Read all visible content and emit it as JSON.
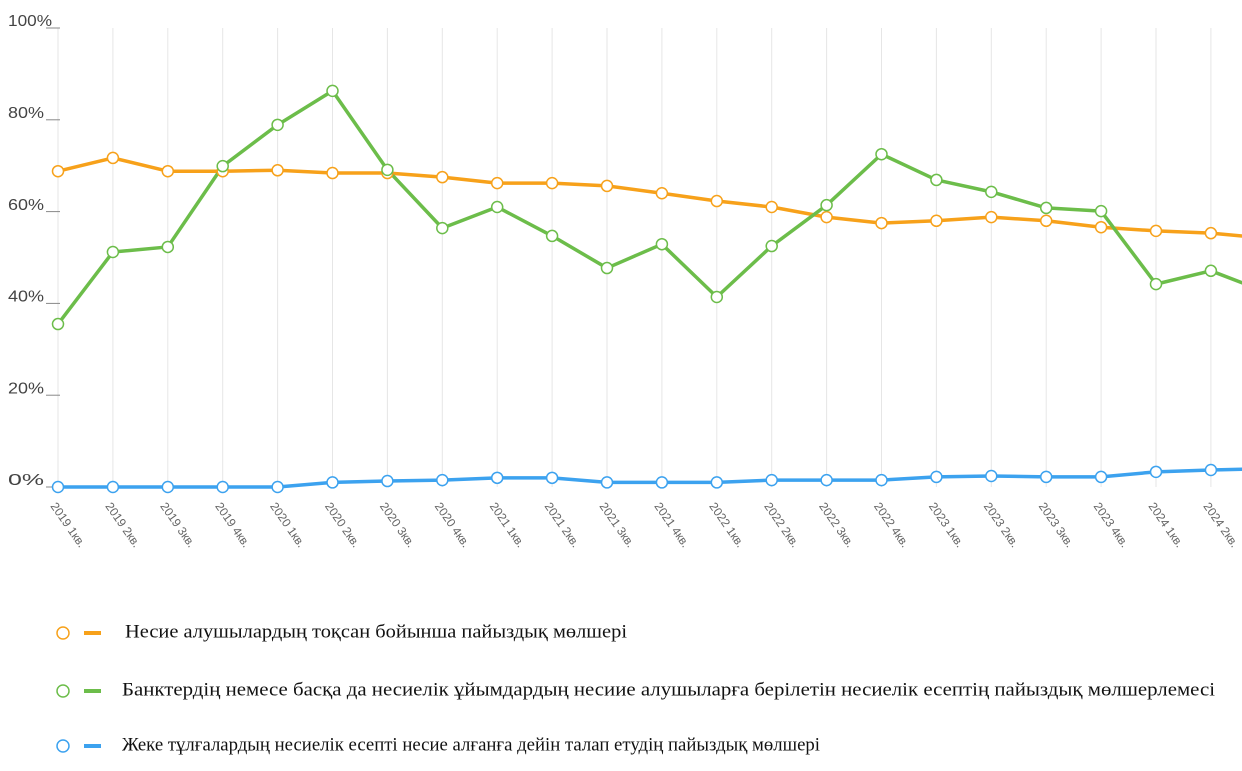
{
  "chart_data": {
    "type": "line",
    "categories": [
      "2019 1кв.",
      "2019 2кв.",
      "2019 3кв.",
      "2019 4кв.",
      "2020 1кв.",
      "2020 2кв.",
      "2020 3кв.",
      "2020 4кв.",
      "2021 1кв.",
      "2021 2кв.",
      "2021 3кв.",
      "2021 4кв.",
      "2022 1кв.",
      "2022 2кв.",
      "2022 3кв.",
      "2022 4кв.",
      "2023 1кв.",
      "2023 2кв.",
      "2023 3кв.",
      "2023 4кв.",
      "2024 1кв.",
      "2024 2кв.",
      null
    ],
    "series": [
      {
        "name": "Несие алушылардың тоқсан бойынша пайыздық мөлшері",
        "color": "#f7a11a",
        "values": [
          68.8,
          71.7,
          68.8,
          68.8,
          69.0,
          68.4,
          68.4,
          67.5,
          66.2,
          66.2,
          65.6,
          64.0,
          62.3,
          61.0,
          58.8,
          57.5,
          58.0,
          58.8,
          58.0,
          56.6,
          55.8,
          55.3,
          54.2
        ]
      },
      {
        "name": "Банктердің немесе басқа да несиелік ұйымдардың несиие алушыларға берілетін несиелік есептің пайыздық мөлшерлемесі",
        "color": "#6cbd4a",
        "values": [
          35.5,
          51.2,
          52.3,
          69.9,
          78.9,
          86.3,
          69.1,
          56.4,
          61.0,
          54.7,
          47.7,
          52.9,
          41.4,
          52.5,
          61.4,
          72.5,
          66.9,
          64.3,
          60.8,
          60.1,
          44.2,
          47.1,
          42.5
        ]
      },
      {
        "name": "Жеке тұлғалардың несиелік есепті несие алғанға дейін талап етудің пайыздық мөлшері",
        "color": "#3ca2ef",
        "values": [
          0,
          0,
          0,
          0,
          0,
          1.0,
          1.3,
          1.5,
          2.0,
          2.0,
          1.0,
          1.0,
          1.0,
          1.5,
          1.5,
          1.5,
          2.2,
          2.4,
          2.2,
          2.2,
          3.3,
          3.7,
          4.0
        ]
      }
    ],
    "ylim": [
      0,
      100
    ],
    "yticks": [
      {
        "value": 0,
        "label": "0%"
      },
      {
        "value": 20,
        "label": "20%"
      },
      {
        "value": 40,
        "label": "40%"
      },
      {
        "value": 60,
        "label": "60%"
      },
      {
        "value": 80,
        "label": "80%"
      },
      {
        "value": 100,
        "label": "100%"
      }
    ],
    "grid": true,
    "legend": "bottom"
  }
}
